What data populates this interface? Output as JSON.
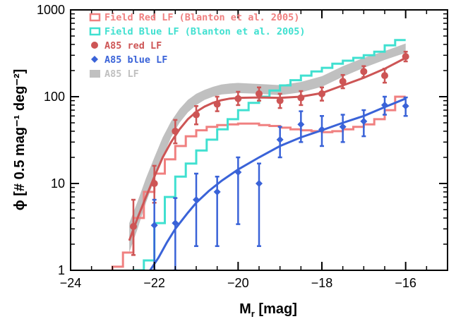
{
  "chart_data": {
    "type": "line",
    "xlabel_main": "M",
    "xlabel_sub": "r",
    "xlabel_rest": " [mag]",
    "ylabel_text": "ϕ [# 0.5 mag⁻¹ deg⁻²]",
    "xlim": [
      -24,
      -15
    ],
    "ylim": [
      1,
      1000
    ],
    "yscale": "log",
    "x_ticks": [
      -24,
      -22,
      -20,
      -18,
      -16
    ],
    "x_tick_labels": [
      "−24",
      "−22",
      "−20",
      "−18",
      "−16"
    ],
    "y_ticks": [
      1,
      10,
      100,
      1000
    ],
    "y_tick_labels": [
      "1",
      "10",
      "100",
      "1000"
    ],
    "legend_position": "top-left",
    "series": [
      {
        "name": "Field Red LF (Blanton et al. 2005)",
        "kind": "step",
        "color": "#f08080",
        "x_edges": [
          -23.0,
          -22.75,
          -22.5,
          -22.25,
          -22.0,
          -21.75,
          -21.5,
          -21.25,
          -21.0,
          -20.75,
          -20.5,
          -20.25,
          -20.0,
          -19.75,
          -19.5,
          -19.25,
          -19.0,
          -18.75,
          -18.5,
          -18.25,
          -18.0,
          -17.75,
          -17.5,
          -17.25,
          -17.0,
          -16.75,
          -16.5,
          -16.25,
          -16.0
        ],
        "values": [
          1.1,
          1.6,
          4.0,
          8.0,
          13,
          19,
          27,
          35,
          41,
          45,
          47,
          48,
          49,
          49,
          47,
          46,
          44,
          42,
          41,
          40,
          39,
          40,
          42,
          45,
          48,
          55,
          70,
          100
        ]
      },
      {
        "name": "Field Blue LF (Blanton et al. 2005)",
        "kind": "step",
        "color": "#40e0d0",
        "x_edges": [
          -22.5,
          -22.25,
          -22.0,
          -21.75,
          -21.5,
          -21.25,
          -21.0,
          -20.75,
          -20.5,
          -20.25,
          -20.0,
          -19.75,
          -19.5,
          -19.25,
          -19.0,
          -18.75,
          -18.5,
          -18.25,
          -18.0,
          -17.75,
          -17.5,
          -17.25,
          -17.0,
          -16.75,
          -16.5,
          -16.25,
          -16.0
        ],
        "values": [
          1.0,
          1.3,
          3.5,
          7.0,
          12,
          17,
          24,
          32,
          42,
          55,
          70,
          85,
          100,
          118,
          135,
          155,
          175,
          195,
          215,
          240,
          260,
          280,
          300,
          330,
          390,
          450
        ]
      },
      {
        "name": "A85 red LF",
        "kind": "points_with_errors",
        "color": "#cd5555",
        "marker": "circle",
        "x": [
          -22.5,
          -22.0,
          -21.5,
          -21.0,
          -20.5,
          -20.0,
          -19.5,
          -19.0,
          -18.5,
          -18.0,
          -17.5,
          -17.0,
          -16.5,
          -16.0
        ],
        "y": [
          3.2,
          10,
          40,
          62,
          82,
          95,
          108,
          90,
          97,
          108,
          150,
          195,
          175,
          290
        ],
        "err_low": [
          1.5,
          6.0,
          29,
          48,
          68,
          80,
          90,
          74,
          80,
          90,
          125,
          168,
          145,
          255
        ],
        "err_high": [
          6.5,
          16,
          54,
          78,
          100,
          114,
          128,
          108,
          116,
          128,
          178,
          225,
          210,
          330
        ]
      },
      {
        "name": "A85 red LF fit",
        "kind": "curve",
        "color": "#cd5555",
        "x": [
          -22.6,
          -22.4,
          -22.2,
          -22.0,
          -21.8,
          -21.6,
          -21.4,
          -21.2,
          -21.0,
          -20.8,
          -20.6,
          -20.4,
          -20.2,
          -20.0,
          -19.5,
          -19.0,
          -18.5,
          -18.0,
          -17.5,
          -17.0,
          -16.5,
          -16.0
        ],
        "y": [
          2.2,
          4.0,
          7.0,
          12,
          20,
          30,
          42,
          55,
          67,
          77,
          85,
          91,
          95,
          97,
          98,
          97,
          100,
          110,
          135,
          165,
          210,
          280
        ]
      },
      {
        "name": "A85 blue LF",
        "kind": "points_with_errors",
        "color": "#3a63d8",
        "marker": "diamond",
        "x": [
          -22.0,
          -21.5,
          -21.0,
          -20.5,
          -20.0,
          -19.5,
          -19.0,
          -18.5,
          -18.0,
          -17.5,
          -17.0,
          -16.5,
          -16.0
        ],
        "y": [
          3.3,
          3.5,
          6.5,
          8.0,
          13.5,
          10,
          32,
          48,
          42,
          45,
          52,
          80,
          78
        ],
        "err_low": [
          1.0,
          1.0,
          1.9,
          1.9,
          3.4,
          1.9,
          20,
          30,
          27,
          30,
          35,
          62,
          60
        ],
        "err_high": [
          6.5,
          6.8,
          13,
          12,
          20,
          17,
          45,
          68,
          60,
          62,
          70,
          100,
          98
        ]
      },
      {
        "name": "A85 blue LF fit",
        "kind": "curve",
        "color": "#3a63d8",
        "x": [
          -22.1,
          -21.9,
          -21.7,
          -21.5,
          -21.2,
          -21.0,
          -20.7,
          -20.4,
          -20.0,
          -19.5,
          -19.0,
          -18.5,
          -18.0,
          -17.5,
          -17.0,
          -16.5,
          -16.0
        ],
        "y": [
          1.0,
          1.4,
          2.1,
          3.0,
          4.6,
          6.0,
          8.2,
          10.7,
          14.5,
          20,
          27,
          34,
          41,
          50,
          60,
          76,
          95
        ]
      },
      {
        "name": "A85 LF",
        "kind": "band",
        "color": "#c0c0c0",
        "x": [
          -22.6,
          -22.4,
          -22.2,
          -22.0,
          -21.8,
          -21.6,
          -21.4,
          -21.2,
          -21.0,
          -20.8,
          -20.6,
          -20.4,
          -20.2,
          -20.0,
          -19.5,
          -19.0,
          -18.5,
          -18.0,
          -17.5,
          -17.0,
          -16.5,
          -16.0
        ],
        "lower": [
          1.6,
          3.0,
          6.0,
          11,
          20,
          34,
          50,
          66,
          80,
          92,
          100,
          106,
          108,
          110,
          108,
          104,
          112,
          130,
          170,
          215,
          265,
          320
        ],
        "upper": [
          3.5,
          6.2,
          11.5,
          20,
          34,
          52,
          72,
          92,
          108,
          120,
          130,
          138,
          142,
          144,
          140,
          136,
          148,
          172,
          225,
          280,
          335,
          410
        ]
      }
    ],
    "legend": [
      {
        "label": "Field Red LF (Blanton et al. 2005)",
        "color": "#f08080",
        "symbol": "box"
      },
      {
        "label": "Field Blue LF (Blanton et al. 2005)",
        "color": "#40e0d0",
        "symbol": "box"
      },
      {
        "label": "A85 red LF",
        "color": "#cd5555",
        "symbol": "circle"
      },
      {
        "label": "A85 blue LF",
        "color": "#3a63d8",
        "symbol": "diamond"
      },
      {
        "label": "A85 LF",
        "color": "#c0c0c0",
        "symbol": "filled-box"
      }
    ]
  }
}
